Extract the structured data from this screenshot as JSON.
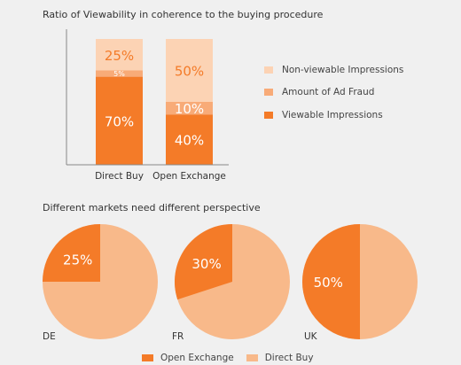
{
  "colors": {
    "viewable": "#f47b28",
    "fraud": "#f8ab78",
    "nonviewable": "#fcd3b4",
    "open_exchange": "#f47b28",
    "direct_buy": "#f8b98a",
    "axis": "#888888",
    "background": "#f0f0f0"
  },
  "chart_data": [
    {
      "type": "bar",
      "stacked": true,
      "title": "Ratio of Viewability in coherence to the buying procedure",
      "categories": [
        "Direct Buy",
        "Open Exchange"
      ],
      "series": [
        {
          "name": "Viewable Impressions",
          "values": [
            70,
            40
          ],
          "labels": [
            "70%",
            "40%"
          ]
        },
        {
          "name": "Amount of Ad Fraud",
          "values": [
            5,
            10
          ],
          "labels": [
            "5%",
            "10%"
          ]
        },
        {
          "name": "Non-viewable Impressions",
          "values": [
            25,
            50
          ],
          "labels": [
            "25%",
            "50%"
          ]
        }
      ],
      "legend_order": [
        "Non-viewable Impressions",
        "Amount of Ad Fraud",
        "Viewable Impressions"
      ],
      "legend_position": "right",
      "ylim": [
        0,
        100
      ]
    },
    {
      "type": "pie",
      "title": "Different markets need different perspective",
      "legend": [
        "Open Exchange",
        "Direct Buy"
      ],
      "legend_position": "bottom",
      "pies": [
        {
          "market": "DE",
          "values": [
            25,
            75
          ],
          "label": "25%"
        },
        {
          "market": "FR",
          "values": [
            30,
            70
          ],
          "label": "30%"
        },
        {
          "market": "UK",
          "values": [
            50,
            50
          ],
          "label": "50%"
        }
      ]
    }
  ]
}
